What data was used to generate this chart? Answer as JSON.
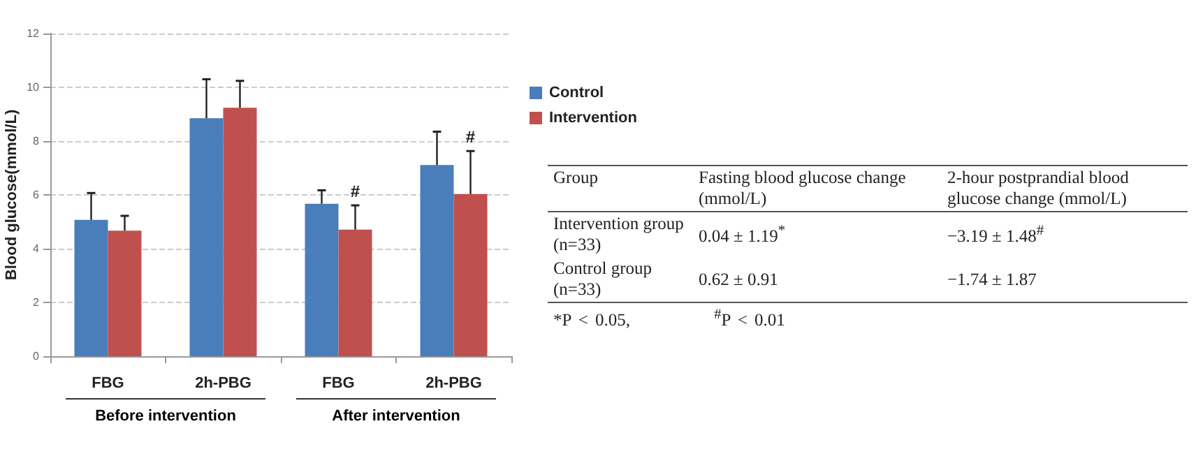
{
  "chart_data": [
    {
      "type": "bar",
      "ylabel": "Blood glucose(mmol/L)",
      "categories": [
        "FBG",
        "2h-PBG",
        "FBG",
        "2h-PBG"
      ],
      "series": [
        {
          "name": "Control",
          "color": "#4a7ebb",
          "values": [
            5.07,
            8.85,
            5.67,
            7.11
          ],
          "errors": [
            1.0,
            1.45,
            0.5,
            1.24
          ]
        },
        {
          "name": "Intervention",
          "color": "#c0504d",
          "values": [
            4.67,
            9.24,
            4.71,
            6.03
          ],
          "errors": [
            0.55,
            1.0,
            0.9,
            1.6
          ],
          "value_labels": [
            null,
            null,
            "#",
            "#"
          ]
        }
      ],
      "ylim": [
        0,
        12
      ],
      "yticks": [
        0,
        2,
        4,
        6,
        8,
        10,
        12
      ],
      "grid": "y",
      "legend": "top right",
      "annotations": [
        "Before intervention",
        "After intervention"
      ]
    },
    {
      "type": "other",
      "annotations": [
        "Group",
        "Fasting blood glucose change (mmol/L)",
        "2-hour postprandial blood glucose change (mmol/L)",
        "Intervention group (n=33)",
        "0.04 ± 1.19$^{*}$",
        "−3.19 ± 1.48$^{#}$",
        "Control group (n=33)",
        "0.62 ± 0.91",
        "−1.74 ± 1.87",
        "*P < 0.05,",
        "$^{#}$P < 0.01"
      ]
    }
  ]
}
